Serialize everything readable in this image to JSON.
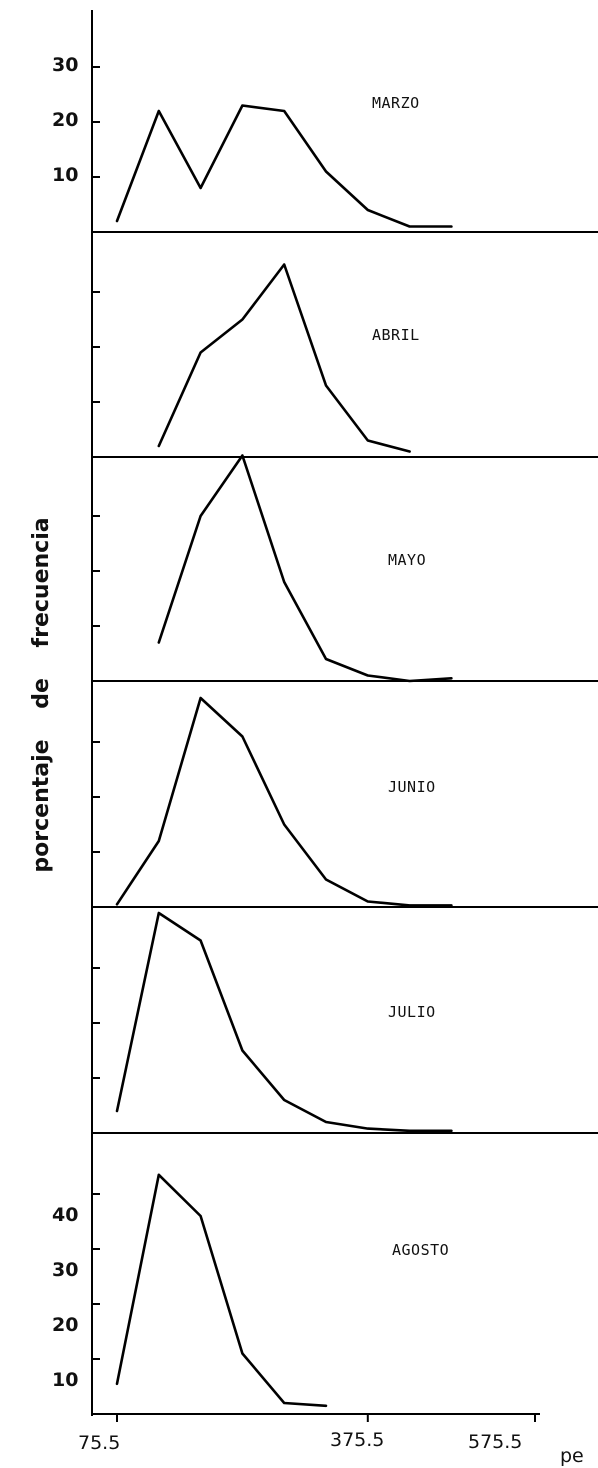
{
  "chart_data": {
    "type": "line",
    "ylabel": "porcentaje    de    frecuencia",
    "xlabel": "pe",
    "x": [
      75.5,
      125.5,
      175.5,
      225.5,
      275.5,
      325.5,
      375.5,
      425.5,
      475.5
    ],
    "x_tick_labels": [
      "75.5",
      "375.5",
      "575.5"
    ],
    "y_tick_labels_top": [
      "30",
      "20",
      "10"
    ],
    "y_tick_labels_bottom": [
      "40",
      "30",
      "20",
      "10"
    ],
    "panels": [
      {
        "name": "MARZO",
        "x": [
          75.5,
          125.5,
          175.5,
          225.5,
          275.5,
          325.5,
          375.5,
          425.5,
          475.5
        ],
        "values": [
          2,
          22,
          8,
          23,
          22,
          11,
          4,
          1,
          1
        ]
      },
      {
        "name": "ABRIL",
        "x": [
          125.5,
          175.5,
          225.5,
          275.5,
          325.5,
          375.5,
          425.5
        ],
        "values": [
          2,
          19,
          25,
          35,
          13,
          3,
          1
        ]
      },
      {
        "name": "MAYO",
        "x": [
          125.5,
          175.5,
          225.5,
          275.5,
          325.5,
          375.5,
          425.5,
          475.5
        ],
        "values": [
          7,
          30,
          41,
          18,
          4,
          1,
          0,
          0.5
        ]
      },
      {
        "name": "JUNIO",
        "x": [
          75.5,
          125.5,
          175.5,
          225.5,
          275.5,
          325.5,
          375.5,
          425.5,
          475.5
        ],
        "values": [
          0.5,
          12,
          38,
          31,
          15,
          5,
          1,
          0.3,
          0.3
        ]
      },
      {
        "name": "JULIO",
        "x": [
          75.5,
          125.5,
          175.5,
          225.5,
          275.5,
          325.5,
          375.5,
          425.5,
          475.5
        ],
        "values": [
          4,
          40,
          35,
          15,
          6,
          2,
          0.8,
          0.4,
          0.4
        ]
      },
      {
        "name": "AGOSTO",
        "x": [
          75.5,
          125.5,
          175.5,
          225.5,
          275.5,
          325.5
        ],
        "values": [
          5.5,
          43.5,
          36,
          11,
          2,
          1.5
        ]
      }
    ]
  }
}
